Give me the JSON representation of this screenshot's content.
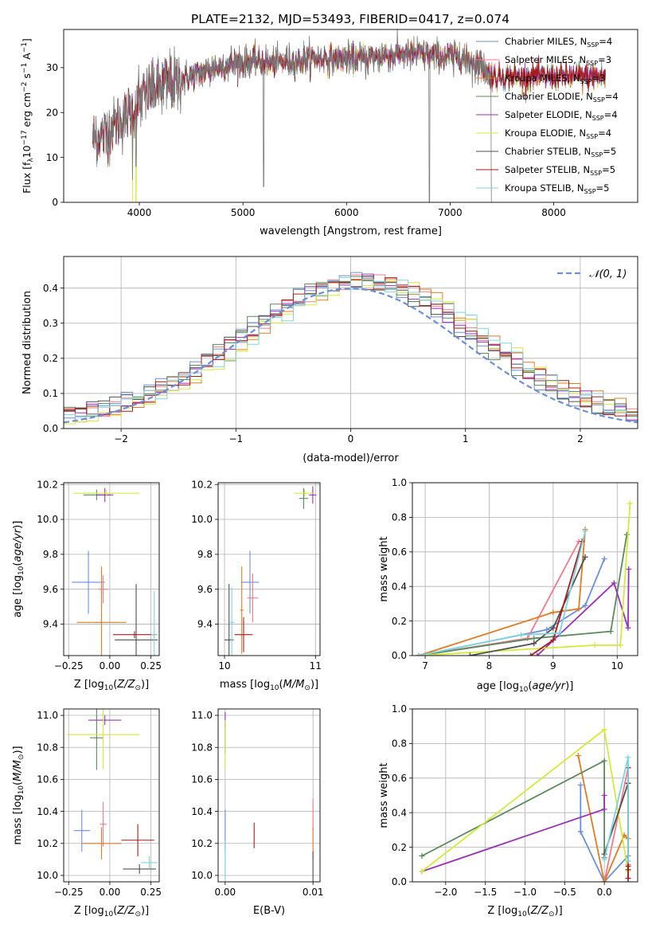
{
  "figure": {
    "title": "PLATE=2132, MJD=53493, FIBERID=0417, z=0.074"
  },
  "models": [
    {
      "key": "chab_miles",
      "label": "Chabrier MILES, N_SSP=4",
      "label_main": "Chabrier MILES, N",
      "label_nssp": "=4",
      "color": "#6b8fd8"
    },
    {
      "key": "salp_miles",
      "label": "Salpeter MILES, N_SSP=3",
      "label_main": "Salpeter MILES, N",
      "label_nssp": "=3",
      "color": "#f07a8c"
    },
    {
      "key": "krou_miles",
      "label": "Kroupa MILES, N_SSP=3",
      "label_main": "Kroupa MILES, N",
      "label_nssp": "=3",
      "color": "#e07b22"
    },
    {
      "key": "chab_elodie",
      "label": "Chabrier ELODIE, N_SSP=4",
      "label_main": "Chabrier ELODIE, N",
      "label_nssp": "=4",
      "color": "#5a8a5c"
    },
    {
      "key": "salp_elodie",
      "label": "Salpeter ELODIE, N_SSP=4",
      "label_main": "Salpeter ELODIE, N",
      "label_nssp": "=4",
      "color": "#9b30b8"
    },
    {
      "key": "krou_elodie",
      "label": "Kroupa ELODIE, N_SSP=4",
      "label_main": "Kroupa ELODIE, N",
      "label_nssp": "=4",
      "color": "#d4ea3a"
    },
    {
      "key": "chab_stelib",
      "label": "Chabrier STELIB, N_SSP=5",
      "label_main": "Chabrier STELIB, N",
      "label_nssp": "=5",
      "color": "#505050"
    },
    {
      "key": "salp_stelib",
      "label": "Salpeter STELIB, N_SSP=5",
      "label_main": "Salpeter STELIB, N",
      "label_nssp": "=5",
      "color": "#a61c1c"
    },
    {
      "key": "krou_stelib",
      "label": "Kroupa STELIB, N_SSP=5",
      "label_main": "Kroupa STELIB, N",
      "label_nssp": "=5",
      "color": "#7dd3e0"
    }
  ],
  "chart_data": [
    {
      "id": "spectrum",
      "type": "line",
      "xlabel": "wavelength [Angstrom, rest frame]",
      "ylabel": "Flux [f_λ 10^-17 erg cm^-2 s^-1 A^-1]",
      "xlim": [
        3270,
        8810
      ],
      "ylim": [
        0,
        38.5
      ],
      "xticks": [
        4000,
        5000,
        6000,
        7000,
        8000
      ],
      "yticks": [
        0,
        10,
        20,
        30
      ],
      "grid": false,
      "legend": "top-right",
      "continuum": {
        "x": [
          3550,
          3650,
          3750,
          3850,
          3950,
          4050,
          4200,
          4350,
          4500,
          4700,
          4900,
          5100,
          5300,
          5500,
          5700,
          5900,
          6100,
          6300,
          6500,
          6700,
          6900,
          7100,
          7300,
          7400
        ],
        "y": [
          14,
          15,
          17,
          19,
          21,
          24,
          26,
          27,
          28,
          29.5,
          31,
          31.5,
          31,
          31.5,
          32,
          32,
          32,
          32.5,
          33,
          33,
          32.5,
          32.5,
          30.5,
          28
        ]
      },
      "absorption_dips": [
        {
          "x": 3934,
          "y": 5
        },
        {
          "x": 3969,
          "y": 8
        },
        {
          "x": 5200,
          "y": 3.5
        },
        {
          "x": 6800,
          "y": 0
        },
        {
          "x": 7400,
          "y": 0
        }
      ],
      "model_extent": {
        "start": 3550,
        "end": 8500
      }
    },
    {
      "id": "residuals",
      "type": "histogram",
      "xlabel": "(data-model)/error",
      "ylabel": "Normed distribution",
      "xlim": [
        -2.5,
        2.5
      ],
      "ylim": [
        0,
        0.49
      ],
      "xticks": [
        -2,
        -1,
        0,
        1,
        2
      ],
      "yticks": [
        0,
        0.1,
        0.2,
        0.3,
        0.4
      ],
      "grid": true,
      "legend": "top-right",
      "reference_curve": {
        "label": "𝒩(0, 1)",
        "style": "dashed",
        "color": "#6b8fd8",
        "mean": 0,
        "sigma": 1
      },
      "bin_width": 0.1
    },
    {
      "id": "age_vs_Z",
      "type": "errorbar",
      "xlabel": "Z [log10(Z/Z⊙)]",
      "ylabel": "age [log10(age/yr)]",
      "xlim": [
        -0.28,
        0.3
      ],
      "ylim": [
        9.22,
        10.21
      ],
      "xticks": [
        -0.25,
        0.0,
        0.25
      ],
      "yticks": [
        9.4,
        9.6,
        9.8,
        10.0,
        10.2
      ],
      "grid": true,
      "points": [
        {
          "model": 0,
          "x": -0.13,
          "y": 9.64,
          "xerr": 0.1,
          "yerr": 0.18
        },
        {
          "model": 1,
          "x": -0.04,
          "y": 9.6,
          "xerr": 0.03,
          "yerr": 0.08
        },
        {
          "model": 2,
          "x": -0.05,
          "y": 9.41,
          "xerr": 0.15,
          "yerr": 0.32
        },
        {
          "model": 3,
          "x": -0.08,
          "y": 10.14,
          "xerr": 0.08,
          "yerr": 0.03
        },
        {
          "model": 4,
          "x": -0.03,
          "y": 10.14,
          "xerr": 0.05,
          "yerr": 0.04
        },
        {
          "model": 5,
          "x": -0.02,
          "y": 10.15,
          "xerr": 0.2,
          "yerr": 0.02
        },
        {
          "model": 6,
          "x": 0.16,
          "y": 9.31,
          "xerr": 0.13,
          "yerr": 0.32
        },
        {
          "model": 7,
          "x": 0.15,
          "y": 9.34,
          "xerr": 0.13,
          "yerr": 0.02
        },
        {
          "model": 8,
          "x": 0.27,
          "y": 9.34,
          "xerr": 0.02,
          "yerr": 0.25
        }
      ]
    },
    {
      "id": "age_vs_mass",
      "type": "errorbar",
      "xlabel": "mass [log10(M/M⊙)]",
      "ylabel": "",
      "xlim": [
        9.93,
        11.05
      ],
      "ylim": [
        9.22,
        10.21
      ],
      "xticks": [
        10,
        11
      ],
      "yticks": [
        9.4,
        9.6,
        9.8,
        10.0,
        10.2
      ],
      "grid": true,
      "points": [
        {
          "model": 0,
          "x": 10.28,
          "y": 9.64,
          "xerr": 0.1,
          "yerr": 0.18
        },
        {
          "model": 1,
          "x": 10.31,
          "y": 9.55,
          "xerr": 0.06,
          "yerr": 0.14
        },
        {
          "model": 2,
          "x": 10.19,
          "y": 9.48,
          "xerr": 0.02,
          "yerr": 0.25
        },
        {
          "model": 3,
          "x": 10.87,
          "y": 10.12,
          "xerr": 0.05,
          "yerr": 0.06
        },
        {
          "model": 4,
          "x": 10.97,
          "y": 10.14,
          "xerr": 0.04,
          "yerr": 0.05
        },
        {
          "model": 5,
          "x": 10.88,
          "y": 10.15,
          "xerr": 0.11,
          "yerr": 0.02
        },
        {
          "model": 6,
          "x": 10.05,
          "y": 9.31,
          "xerr": 0.05,
          "yerr": 0.32
        },
        {
          "model": 7,
          "x": 10.21,
          "y": 9.34,
          "xerr": 0.1,
          "yerr": 0.1
        },
        {
          "model": 8,
          "x": 10.08,
          "y": 9.41,
          "xerr": 0.03,
          "yerr": 0.2
        }
      ]
    },
    {
      "id": "mass_weight_vs_age",
      "type": "line",
      "xlabel": "age [log10(age/yr)]",
      "ylabel": "mass weight",
      "xlim": [
        6.8,
        10.32
      ],
      "ylim": [
        0,
        1.0
      ],
      "xticks": [
        7,
        8,
        9,
        10
      ],
      "yticks": [
        0.0,
        0.2,
        0.4,
        0.6,
        0.8,
        1.0
      ],
      "grid": true,
      "series": [
        {
          "model": 0,
          "x": [
            6.9,
            8.9,
            9.5,
            9.8
          ],
          "y": [
            0.0,
            0.15,
            0.29,
            0.56
          ]
        },
        {
          "model": 1,
          "x": [
            6.9,
            8.6,
            9.4
          ],
          "y": [
            0.0,
            0.1,
            0.66
          ]
        },
        {
          "model": 2,
          "x": [
            6.9,
            9.0,
            9.4,
            9.5
          ],
          "y": [
            0.0,
            0.25,
            0.27,
            0.73
          ]
        },
        {
          "model": 3,
          "x": [
            6.9,
            8.7,
            9.9,
            10.15
          ],
          "y": [
            0.0,
            0.1,
            0.14,
            0.7
          ]
        },
        {
          "model": 4,
          "x": [
            8.75,
            9.95,
            10.17,
            10.18
          ],
          "y": [
            0.0,
            0.42,
            0.16,
            0.5
          ]
        },
        {
          "model": 5,
          "x": [
            6.9,
            9.65,
            10.05,
            10.2
          ],
          "y": [
            0.0,
            0.06,
            0.06,
            0.88
          ]
        },
        {
          "model": 6,
          "x": [
            7.7,
            8.7,
            9.0,
            9.5
          ],
          "y": [
            0.0,
            0.07,
            0.16,
            0.57
          ]
        },
        {
          "model": 7,
          "x": [
            8.65,
            9.0,
            9.45
          ],
          "y": [
            0.0,
            0.09,
            0.66
          ]
        },
        {
          "model": 8,
          "x": [
            6.9,
            8.5,
            9.1,
            9.5
          ],
          "y": [
            0.0,
            0.12,
            0.13,
            0.72
          ]
        }
      ]
    },
    {
      "id": "mass_vs_Z",
      "type": "errorbar",
      "xlabel": "Z [log10(Z/Z⊙)]",
      "ylabel": "mass [log10(M/M⊙)]",
      "xlim": [
        -0.28,
        0.3
      ],
      "ylim": [
        9.96,
        11.04
      ],
      "xticks": [
        -0.25,
        0.0,
        0.25
      ],
      "yticks": [
        10.0,
        10.2,
        10.4,
        10.6,
        10.8,
        11.0
      ],
      "grid": true,
      "points": [
        {
          "model": 0,
          "x": -0.17,
          "y": 10.28,
          "xerr": 0.05,
          "yerr": 0.13
        },
        {
          "model": 1,
          "x": -0.04,
          "y": 10.32,
          "xerr": 0.02,
          "yerr": 0.14
        },
        {
          "model": 2,
          "x": -0.05,
          "y": 10.2,
          "xerr": 0.12,
          "yerr": 0.1
        },
        {
          "model": 3,
          "x": -0.08,
          "y": 10.86,
          "xerr": 0.04,
          "yerr": 0.2
        },
        {
          "model": 4,
          "x": -0.03,
          "y": 10.97,
          "xerr": 0.1,
          "yerr": 0.03
        },
        {
          "model": 5,
          "x": -0.04,
          "y": 10.88,
          "xerr": 0.22,
          "yerr": 0.22
        },
        {
          "model": 6,
          "x": 0.18,
          "y": 10.04,
          "xerr": 0.1,
          "yerr": 0.03
        },
        {
          "model": 7,
          "x": 0.17,
          "y": 10.22,
          "xerr": 0.1,
          "yerr": 0.1
        },
        {
          "model": 8,
          "x": 0.24,
          "y": 10.08,
          "xerr": 0.05,
          "yerr": 0.04
        }
      ]
    },
    {
      "id": "mass_vs_ebv",
      "type": "errorbar",
      "xlabel": "E(B-V)",
      "ylabel": "",
      "xlim": [
        -0.0008,
        0.0108
      ],
      "ylim": [
        9.96,
        11.04
      ],
      "xticks": [
        0.0,
        0.01
      ],
      "xticklabels": [
        "0.00",
        "0.01"
      ],
      "yticks": [
        10.0,
        10.2,
        10.4,
        10.6,
        10.8,
        11.0
      ],
      "grid": true,
      "points": [
        {
          "model": 0,
          "x": 0.0,
          "y": 10.28,
          "xerr": 0,
          "yerr": 0.13
        },
        {
          "model": 1,
          "x": 0.01,
          "y": 10.38,
          "xerr": 0,
          "yerr": 0.1
        },
        {
          "model": 2,
          "x": 0.01,
          "y": 10.2,
          "xerr": 0,
          "yerr": 0.1
        },
        {
          "model": 3,
          "x": 0.0,
          "y": 10.86,
          "xerr": 0,
          "yerr": 0.1
        },
        {
          "model": 4,
          "x": 0.0,
          "y": 10.97,
          "xerr": 0,
          "yerr": 0.05
        },
        {
          "model": 5,
          "x": 0.0,
          "y": 10.82,
          "xerr": 0,
          "yerr": 0.15
        },
        {
          "model": 6,
          "x": 0.01,
          "y": 10.05,
          "xerr": 0,
          "yerr": 0.1
        },
        {
          "model": 7,
          "x": 0.0033,
          "y": 10.25,
          "xerr": 0,
          "yerr": 0.08
        },
        {
          "model": 8,
          "x": 0.0,
          "y": 10.1,
          "xerr": 0,
          "yerr": 0.12
        }
      ]
    },
    {
      "id": "mass_weight_vs_Z",
      "type": "line",
      "xlabel": "Z [log10(Z/Z⊙)]",
      "ylabel": "mass weight",
      "xlim": [
        -2.42,
        0.42
      ],
      "ylim": [
        0,
        1.0
      ],
      "xticks": [
        -2.0,
        -1.5,
        -1.0,
        -0.5,
        0.0
      ],
      "yticks": [
        0.0,
        0.2,
        0.4,
        0.6,
        0.8,
        1.0
      ],
      "grid": true,
      "series": [
        {
          "model": 0,
          "x": [
            -0.3,
            -0.3,
            0.0,
            0.3,
            0.3
          ],
          "y": [
            0.56,
            0.29,
            0.0,
            0.15,
            0.0
          ]
        },
        {
          "model": 1,
          "x": [
            0.0,
            0.3,
            0.3
          ],
          "y": [
            0.0,
            0.66,
            0.1
          ]
        },
        {
          "model": 2,
          "x": [
            -0.33,
            0.0,
            0.25,
            0.3
          ],
          "y": [
            0.73,
            0.0,
            0.27,
            0.25
          ]
        },
        {
          "model": 3,
          "x": [
            -2.3,
            0.0,
            0.0
          ],
          "y": [
            0.15,
            0.7,
            0.14
          ]
        },
        {
          "model": 4,
          "x": [
            -2.3,
            0.0,
            0.0
          ],
          "y": [
            0.06,
            0.42,
            0.5
          ]
        },
        {
          "model": 5,
          "x": [
            -2.3,
            0.0,
            0.3
          ],
          "y": [
            0.06,
            0.88,
            0.06
          ]
        },
        {
          "model": 6,
          "x": [
            0.0,
            0.3,
            0.3
          ],
          "y": [
            0.16,
            0.57,
            0.07
          ]
        },
        {
          "model": 7,
          "x": [
            0.3,
            0.3,
            0.3
          ],
          "y": [
            0.66,
            0.09,
            0.02
          ]
        },
        {
          "model": 8,
          "x": [
            0.0,
            0.3,
            0.3
          ],
          "y": [
            0.13,
            0.72,
            0.12
          ]
        }
      ]
    }
  ]
}
